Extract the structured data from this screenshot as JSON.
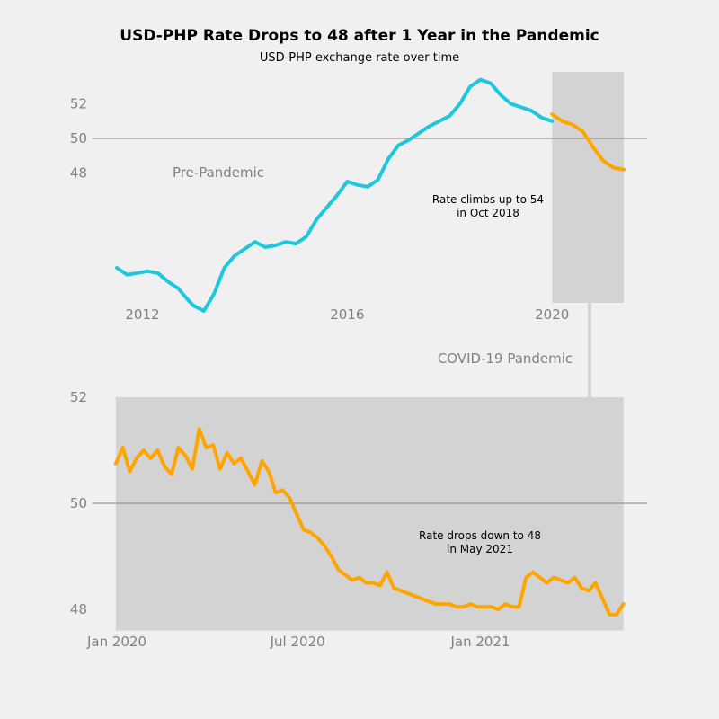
{
  "title": "USD-PHP Rate Drops to 48 after 1 Year in the Pandemic",
  "subtitle": "USD-PHP exchange rate over time",
  "colors": {
    "background": "#f0f0f0",
    "pre_pandemic_line": "#1ec8dc",
    "pandemic_line": "#ffa500",
    "pandemic_region": "#d3d3d3",
    "reference_line": "#808080",
    "tick_text": "#808080"
  },
  "chart_data": [
    {
      "type": "line",
      "series": [
        {
          "x": [
            2011.5,
            2011.7,
            2011.9,
            2012.1,
            2012.3,
            2012.5,
            2012.7,
            2012.9,
            2013.0,
            2013.2,
            2013.4,
            2013.6,
            2013.8,
            2014.0,
            2014.2,
            2014.4,
            2014.6,
            2014.8,
            2015.0,
            2015.2,
            2015.4,
            2015.6,
            2015.8,
            2016.0,
            2016.2,
            2016.4,
            2016.6,
            2016.8,
            2017.0,
            2017.2,
            2017.4,
            2017.6,
            2017.8,
            2018.0,
            2018.2,
            2018.4,
            2018.6,
            2018.8,
            2019.0,
            2019.2,
            2019.4,
            2019.6,
            2019.8,
            2020.0
          ],
          "values": [
            42.5,
            42.1,
            42.2,
            42.3,
            42.2,
            41.7,
            41.3,
            40.6,
            40.3,
            40.0,
            41.0,
            42.5,
            43.2,
            43.6,
            44.0,
            43.7,
            43.8,
            44.0,
            43.9,
            44.3,
            45.3,
            46.0,
            46.7,
            47.5,
            47.3,
            47.2,
            47.6,
            48.8,
            49.6,
            49.9,
            50.3,
            50.7,
            51.0,
            51.3,
            52.0,
            53.0,
            53.4,
            53.2,
            52.5,
            52.0,
            51.8,
            51.6,
            51.2,
            51.0
          ]
        },
        {
          "x": [
            2020.0,
            2020.2,
            2020.4,
            2020.6,
            2020.8,
            2021.0,
            2021.2,
            2021.4
          ],
          "values": [
            51.4,
            51.0,
            50.8,
            50.4,
            49.5,
            48.7,
            48.3,
            48.2
          ]
        }
      ],
      "xticks": [
        "2012",
        "2016",
        "2020"
      ],
      "yticks": [
        "48",
        "50",
        "52"
      ],
      "xlim": [
        2011.0,
        2022.0
      ],
      "ylim": [
        40,
        54
      ],
      "region_label": "Pre-Pandemic",
      "annotation": "Rate climbs up to 54\nin Oct 2018",
      "reference_line": 50
    },
    {
      "type": "line",
      "series": [
        {
          "x": [
            "2019-12-31",
            "2020-01-07",
            "2020-01-14",
            "2020-01-21",
            "2020-01-28",
            "2020-02-04",
            "2020-02-11",
            "2020-02-18",
            "2020-02-25",
            "2020-03-03",
            "2020-03-10",
            "2020-03-17",
            "2020-03-24",
            "2020-03-31",
            "2020-04-07",
            "2020-04-14",
            "2020-04-21",
            "2020-04-28",
            "2020-05-05",
            "2020-05-12",
            "2020-05-19",
            "2020-05-26",
            "2020-06-02",
            "2020-06-09",
            "2020-06-16",
            "2020-06-23",
            "2020-06-30",
            "2020-07-07",
            "2020-07-14",
            "2020-07-21",
            "2020-07-28",
            "2020-08-04",
            "2020-08-11",
            "2020-08-18",
            "2020-08-25",
            "2020-09-01",
            "2020-09-08",
            "2020-09-15",
            "2020-09-22",
            "2020-09-29",
            "2020-10-06",
            "2020-10-13",
            "2020-10-20",
            "2020-10-27",
            "2020-11-03",
            "2020-11-10",
            "2020-11-17",
            "2020-11-24",
            "2020-12-01",
            "2020-12-08",
            "2020-12-15",
            "2020-12-22",
            "2020-12-29",
            "2021-01-05",
            "2021-01-12",
            "2021-01-19",
            "2021-01-26",
            "2021-02-02",
            "2021-02-09",
            "2021-02-16",
            "2021-02-23",
            "2021-03-02",
            "2021-03-09",
            "2021-03-16",
            "2021-03-23",
            "2021-03-30",
            "2021-04-06",
            "2021-04-13",
            "2021-04-20",
            "2021-04-27",
            "2021-05-04",
            "2021-05-11",
            "2021-05-18",
            "2021-05-25"
          ],
          "values": [
            50.75,
            51.05,
            50.6,
            50.85,
            51.0,
            50.85,
            51.0,
            50.7,
            50.55,
            51.05,
            50.9,
            50.65,
            51.4,
            51.05,
            51.1,
            50.65,
            50.95,
            50.75,
            50.85,
            50.6,
            50.35,
            50.8,
            50.6,
            50.2,
            50.25,
            50.1,
            49.8,
            49.5,
            49.45,
            49.35,
            49.2,
            49.0,
            48.75,
            48.65,
            48.55,
            48.6,
            48.5,
            48.5,
            48.45,
            48.7,
            48.4,
            48.35,
            48.3,
            48.25,
            48.2,
            48.15,
            48.1,
            48.1,
            48.1,
            48.05,
            48.05,
            48.1,
            48.05,
            48.05,
            48.05,
            48.0,
            48.1,
            48.05,
            48.05,
            48.6,
            48.7,
            48.6,
            48.5,
            48.6,
            48.55,
            48.5,
            48.6,
            48.4,
            48.35,
            48.5,
            48.2,
            47.9,
            47.9,
            48.1
          ]
        }
      ],
      "xticks": [
        "Jan 2020",
        "Jul 2020",
        "Jan 2021"
      ],
      "yticks": [
        "48",
        "50",
        "52"
      ],
      "ylim": [
        47.6,
        52.0
      ],
      "region_label": "COVID-19 Pandemic",
      "annotation": "Rate drops down to 48\nin May 2021",
      "reference_line": 50
    }
  ]
}
